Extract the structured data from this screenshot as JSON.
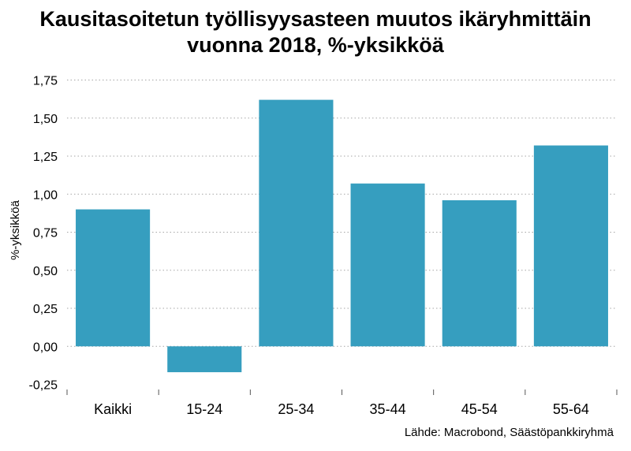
{
  "chart_data": {
    "type": "bar",
    "title_line1": "Kausitasoitetun työllisyysasteen muutos ikäryhmittäin",
    "title_line2": "vuonna 2018, %-yksikköä",
    "ylabel": "%-yksikköä",
    "xlabel": "",
    "categories": [
      "Kaikki",
      "15-24",
      "25-34",
      "35-44",
      "45-54",
      "55-64"
    ],
    "values": [
      0.9,
      -0.17,
      1.62,
      1.07,
      0.96,
      1.32
    ],
    "ylim": [
      -0.25,
      1.75
    ],
    "yticks": [
      "-0,25",
      "0,00",
      "0,25",
      "0,50",
      "0,75",
      "1,00",
      "1,25",
      "1,50",
      "1,75"
    ],
    "ytick_values": [
      -0.25,
      0,
      0.25,
      0.5,
      0.75,
      1.0,
      1.25,
      1.5,
      1.75
    ],
    "grid": true,
    "bar_color": "#369ebf",
    "source": "Lähde: Macrobond, Säästöpankkiryhmä"
  }
}
